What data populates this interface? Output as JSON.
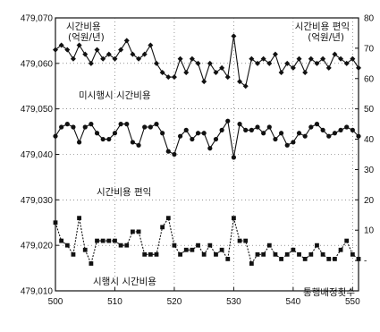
{
  "chart_data": {
    "type": "line",
    "x_ticks": [
      500,
      510,
      520,
      530,
      540,
      550
    ],
    "xlim": [
      500,
      551
    ],
    "left_axis": {
      "label_line1": "시간비용",
      "label_line2": "(억원/년)",
      "ticks": [
        "479,070",
        "479,060",
        "479,050",
        "479,040",
        "479,030",
        "479,020",
        "479,010"
      ],
      "ylim": [
        479010,
        479070
      ]
    },
    "right_axis": {
      "label_line1": "시간비용 편익",
      "label_line2": "(억원/년)",
      "ticks": [
        "80",
        "70",
        "60",
        "50",
        "40",
        "30",
        "20",
        "10",
        "-"
      ],
      "ylim": [
        -10,
        80
      ]
    },
    "annotations": {
      "top_series": "미시행시 시간비용",
      "middle_series": "시간비용 편익",
      "bottom_series": "시행시 시간비용",
      "bottom_right": "통행배정횟수"
    },
    "x": [
      500,
      501,
      502,
      503,
      504,
      505,
      506,
      507,
      508,
      509,
      510,
      511,
      512,
      513,
      514,
      515,
      516,
      517,
      518,
      519,
      520,
      521,
      522,
      523,
      524,
      525,
      526,
      527,
      528,
      529,
      530,
      531,
      532,
      533,
      534,
      535,
      536,
      537,
      538,
      539,
      540,
      541,
      542,
      543,
      544,
      545,
      546,
      547,
      548,
      549,
      550,
      551
    ],
    "series": [
      {
        "name": "미시행시 시간비용",
        "axis": "left",
        "marker": "diamond",
        "values": [
          479063,
          479064,
          479063,
          479061,
          479064,
          479062,
          479060,
          479063,
          479061,
          479062,
          479061,
          479063,
          479065,
          479062,
          479061,
          479062,
          479064,
          479060,
          479058,
          479057,
          479057,
          479061,
          479058,
          479061,
          479060,
          479056,
          479060,
          479058,
          479059,
          479057,
          479066,
          479056,
          479055,
          479061,
          479060,
          479061,
          479060,
          479062,
          479058,
          479060,
          479059,
          479061,
          479058,
          479061,
          479060,
          479061,
          479059,
          479062,
          479061,
          479060,
          479061,
          479059
        ]
      },
      {
        "name": "시간비용 편익",
        "axis": "right",
        "marker": "circle",
        "values": [
          41,
          44,
          45,
          44,
          39,
          44,
          45,
          42,
          40,
          40,
          42,
          45,
          45,
          39,
          38,
          44,
          44,
          45,
          42,
          36,
          35,
          41,
          43,
          40,
          42,
          42,
          37,
          40,
          43,
          46,
          34,
          45,
          43,
          43,
          44,
          42,
          44,
          40,
          42,
          38,
          39,
          42,
          41,
          44,
          45,
          43,
          41,
          42,
          43,
          44,
          43,
          41
        ]
      },
      {
        "name": "시행시 시간비용",
        "axis": "left",
        "marker": "square",
        "values": [
          479025,
          479021,
          479020,
          479018,
          479026,
          479019,
          479016,
          479021,
          479021,
          479021,
          479021,
          479020,
          479020,
          479023,
          479023,
          479018,
          479018,
          479018,
          479024,
          479026,
          479020,
          479018,
          479019,
          479019,
          479020,
          479018,
          479020,
          479018,
          479019,
          479017,
          479026,
          479021,
          479021,
          479016,
          479018,
          479018,
          479020,
          479018,
          479017,
          479018,
          479019,
          479018,
          479017,
          479018,
          479020,
          479018,
          479017,
          479017,
          479019,
          479021,
          479018,
          479017
        ]
      }
    ]
  }
}
